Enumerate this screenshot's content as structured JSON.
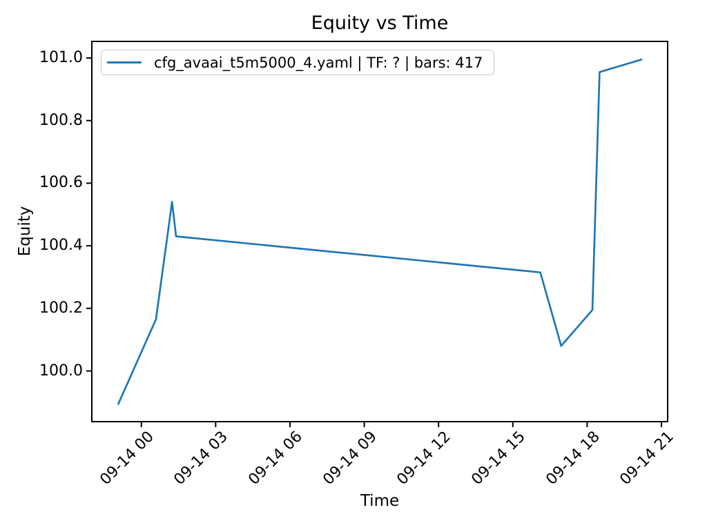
{
  "figure": {
    "title": "Equity vs Time",
    "xlabel": "Time",
    "ylabel": "Equity",
    "legend": {
      "label": "cfg_avaai_t5m5000_4.yaml | TF: ? | bars: 417",
      "line_color": "#1f77b4"
    }
  },
  "chart_data": {
    "type": "line",
    "title": "Equity vs Time",
    "xlabel": "Time",
    "ylabel": "Equity",
    "grid": false,
    "legend_position": "upper left",
    "x_tick_rotation_deg": 45,
    "xlim_hours": [
      -2.0,
      21.25
    ],
    "ylim": [
      99.838,
      101.053
    ],
    "y_ticks": [
      100.0,
      100.2,
      100.4,
      100.6,
      100.8,
      101.0
    ],
    "x_ticks": [
      {
        "hours": 0,
        "label": "09-14 00"
      },
      {
        "hours": 3,
        "label": "09-14 03"
      },
      {
        "hours": 6,
        "label": "09-14 06"
      },
      {
        "hours": 9,
        "label": "09-14 09"
      },
      {
        "hours": 12,
        "label": "09-14 12"
      },
      {
        "hours": 15,
        "label": "09-14 15"
      },
      {
        "hours": 18,
        "label": "09-14 18"
      },
      {
        "hours": 21,
        "label": "09-14 21"
      }
    ],
    "series": [
      {
        "name": "cfg_avaai_t5m5000_4.yaml | TF: ? | bars: 417",
        "color": "#1f77b4",
        "points": [
          {
            "time": "09-13 23:04",
            "hours": -0.93,
            "equity": 99.895
          },
          {
            "time": "09-14 00:35",
            "hours": 0.59,
            "equity": 100.165
          },
          {
            "time": "09-14 01:14",
            "hours": 1.24,
            "equity": 100.54
          },
          {
            "time": "09-14 01:24",
            "hours": 1.4,
            "equity": 100.43
          },
          {
            "time": "09-14 16:07",
            "hours": 16.11,
            "equity": 100.315
          },
          {
            "time": "09-14 16:57",
            "hours": 16.95,
            "equity": 100.08
          },
          {
            "time": "09-14 18:13",
            "hours": 18.21,
            "equity": 100.195
          },
          {
            "time": "09-14 18:30",
            "hours": 18.5,
            "equity": 100.955
          },
          {
            "time": "09-14 20:11",
            "hours": 20.19,
            "equity": 100.995
          }
        ]
      }
    ]
  }
}
